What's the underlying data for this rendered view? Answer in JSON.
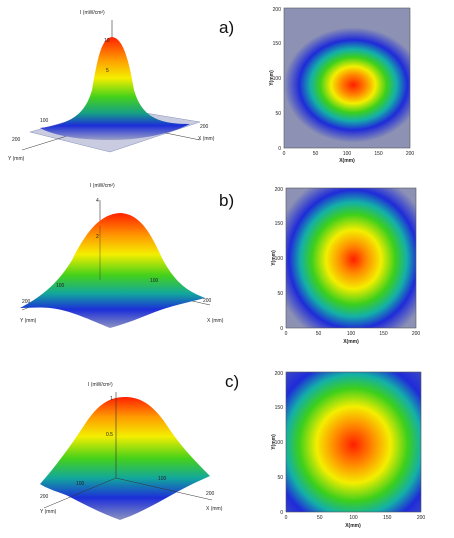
{
  "panels": [
    {
      "label": "a)",
      "surface": {
        "z_axis_label": "I (mW/cm²)",
        "z_ticks": [
          "10",
          "5"
        ],
        "x_axis_label": "X (mm)",
        "y_axis_label": "Y (mm)",
        "x_tick": "200",
        "y_tick": "200",
        "mid_tick": "100"
      },
      "map": {
        "x_ticks": [
          "0",
          "50",
          "100",
          "150",
          "200"
        ],
        "y_ticks": [
          "0",
          "50",
          "100",
          "150",
          "200"
        ],
        "xlabel": "X(mm)",
        "ylabel": "Y(mm)"
      }
    },
    {
      "label": "b)",
      "surface": {
        "z_axis_label": "I (mW/cm²)",
        "z_ticks": [
          "4",
          "2"
        ],
        "x_axis_label": "X (mm)",
        "y_axis_label": "Y (mm)",
        "x_tick": "200",
        "y_tick": "200",
        "mid_tick": "100",
        "mid_tick_2": "100"
      },
      "map": {
        "x_ticks": [
          "0",
          "50",
          "100",
          "150",
          "200"
        ],
        "y_ticks": [
          "0",
          "50",
          "100",
          "150",
          "200"
        ],
        "xlabel": "X(mm)",
        "ylabel": "Y(mm)"
      }
    },
    {
      "label": "c)",
      "surface": {
        "z_axis_label": "I (mW/cm²)",
        "z_ticks": [
          "1",
          "0.5"
        ],
        "x_axis_label": "X (mm)",
        "y_axis_label": "Y (mm)",
        "x_tick": "200",
        "y_tick": "200",
        "mid_tick": "100",
        "mid_tick_2": "100"
      },
      "map": {
        "x_ticks": [
          "0",
          "50",
          "100",
          "150",
          "200"
        ],
        "y_ticks": [
          "0",
          "50",
          "100",
          "150",
          "200"
        ],
        "xlabel": "X(mm)",
        "ylabel": "Y(mm)"
      }
    }
  ],
  "colors": {
    "peak": "#ff2a00",
    "high": "#ffe400",
    "mid": "#3ecf1e",
    "low": "#1a2bd6",
    "base": "#8a90b8"
  }
}
